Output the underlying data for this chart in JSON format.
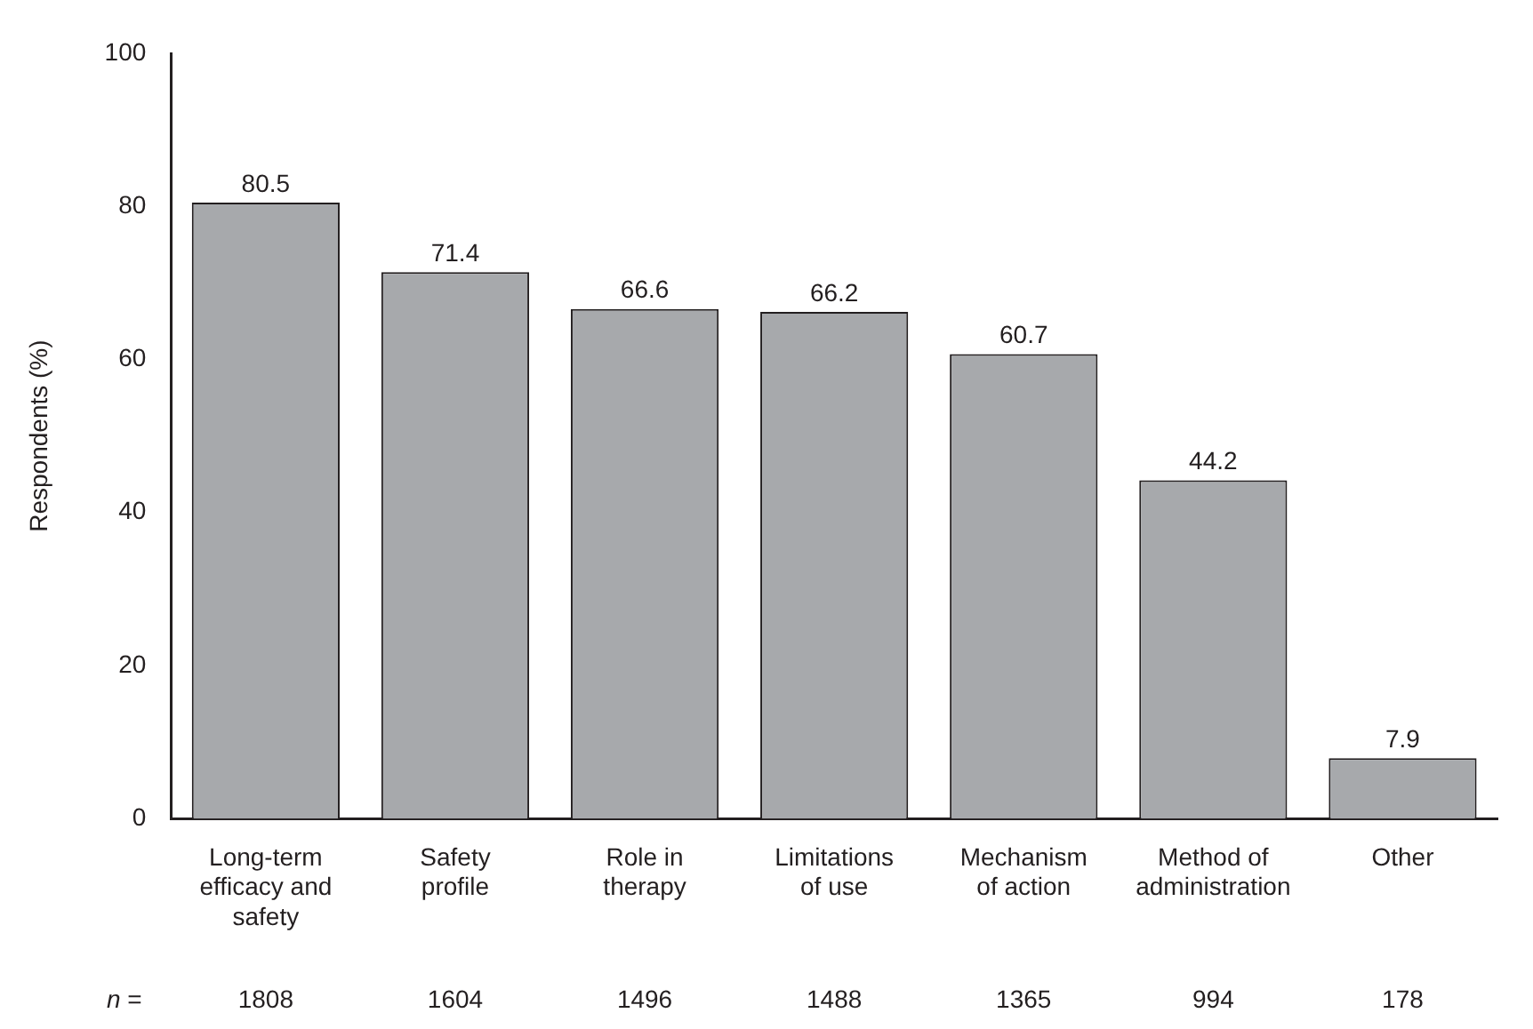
{
  "chart_data": {
    "type": "bar",
    "ylabel": "Respondents (%)",
    "categories": [
      "Long-term efficacy and safety",
      "Safety profile",
      "Role in therapy",
      "Limitations of use",
      "Mechanism of action",
      "Method of administration",
      "Other"
    ],
    "values": [
      80.5,
      71.4,
      66.6,
      66.2,
      60.7,
      44.2,
      7.9
    ],
    "color": "#a7a9ac",
    "ylim": [
      0,
      100
    ],
    "yticks": [
      0,
      20,
      40,
      60,
      80,
      100
    ],
    "grid": false,
    "legend": false,
    "data_labels": true,
    "annotations": [
      "n =",
      "1808",
      "1604",
      "1496",
      "1488",
      "1365",
      "994",
      "178"
    ]
  }
}
